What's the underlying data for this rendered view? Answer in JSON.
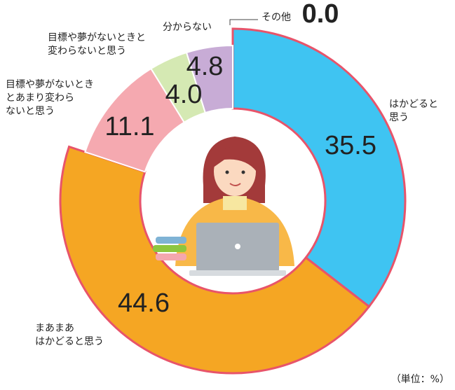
{
  "chart_data": {
    "type": "donut",
    "categories": [
      "はかどると\n思う",
      "まあまあ\nはかどると思う",
      "目標や夢がないとき\nとあまり変わら\nないと思う",
      "目標や夢がないときと\n変わらないと思う",
      "分からない",
      "その他"
    ],
    "values": [
      35.5,
      44.6,
      11.1,
      4.0,
      4.8,
      0.0
    ],
    "value_labels": [
      "35.5",
      "44.6",
      "11.1",
      "4.0",
      "4.8",
      "0.0"
    ],
    "colors": [
      "#3fc4f2",
      "#f5a623",
      "#f5a9b0",
      "#d5e9b3",
      "#c8acd6",
      "#9e9e9e"
    ],
    "unit": "（単位：%）"
  }
}
